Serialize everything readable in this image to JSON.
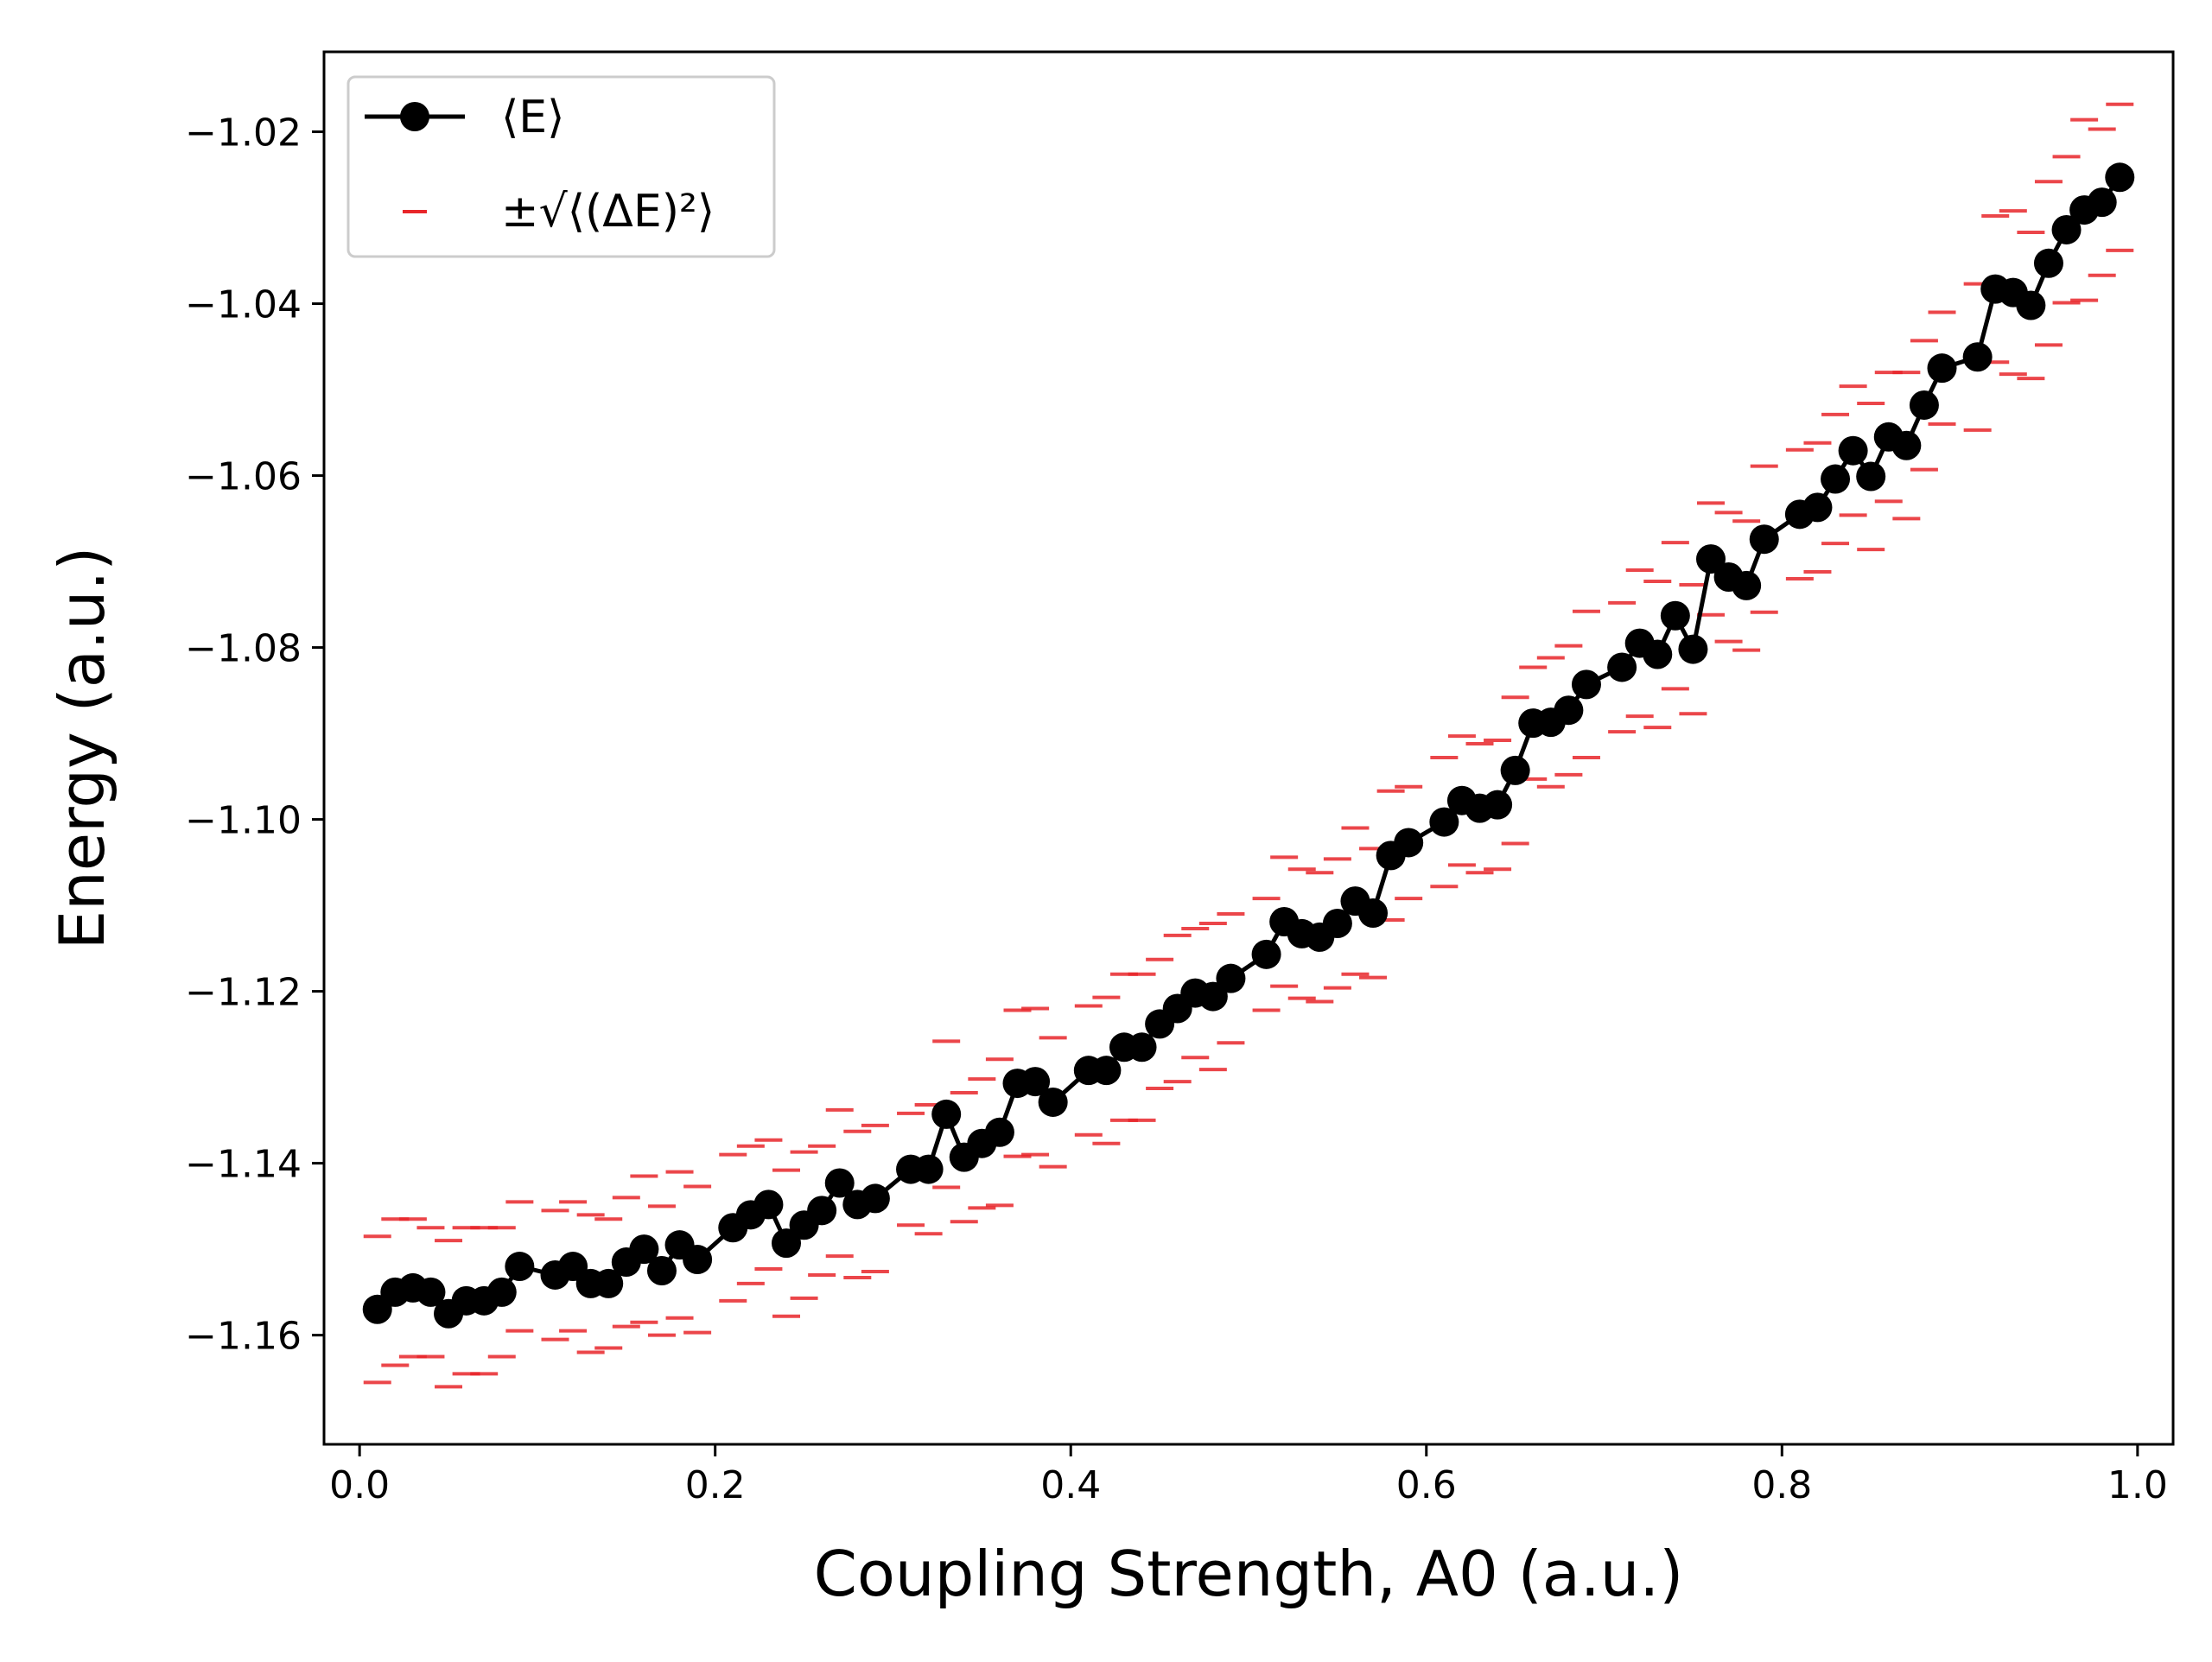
{
  "chart_data": {
    "type": "line",
    "title": "",
    "xlabel": "Coupling Strength, A0 (a.u.)",
    "ylabel": "Energy (a.u.)",
    "xlim": [
      -0.02,
      1.02
    ],
    "ylim": [
      -1.1727,
      -1.0107
    ],
    "xticks": [
      0.0,
      0.2,
      0.4,
      0.6,
      0.8,
      1.0
    ],
    "xtick_labels": [
      "0.0",
      "0.2",
      "0.4",
      "0.6",
      "0.8",
      "1.0"
    ],
    "yticks": [
      -1.16,
      -1.14,
      -1.12,
      -1.1,
      -1.08,
      -1.06,
      -1.04,
      -1.02
    ],
    "ytick_labels": [
      "−1.16",
      "−1.14",
      "−1.12",
      "−1.10",
      "−1.08",
      "−1.06",
      "−1.04",
      "−1.02"
    ],
    "grid": false,
    "legend_position": "top-left",
    "x": [
      0.01,
      0.02,
      0.03,
      0.04,
      0.05,
      0.06,
      0.07,
      0.08,
      0.09,
      0.11,
      0.12,
      0.13,
      0.14,
      0.15,
      0.16,
      0.17,
      0.18,
      0.19,
      0.21,
      0.22,
      0.23,
      0.24,
      0.25,
      0.26,
      0.27,
      0.28,
      0.29,
      0.31,
      0.32,
      0.33,
      0.34,
      0.35,
      0.36,
      0.37,
      0.38,
      0.39,
      0.41,
      0.42,
      0.43,
      0.44,
      0.45,
      0.46,
      0.47,
      0.48,
      0.49,
      0.51,
      0.52,
      0.53,
      0.54,
      0.55,
      0.56,
      0.57,
      0.58,
      0.59,
      0.61,
      0.62,
      0.63,
      0.64,
      0.65,
      0.66,
      0.67,
      0.68,
      0.69,
      0.71,
      0.72,
      0.73,
      0.74,
      0.75,
      0.76,
      0.77,
      0.78,
      0.79,
      0.81,
      0.82,
      0.83,
      0.84,
      0.85,
      0.86,
      0.87,
      0.88,
      0.89,
      0.91,
      0.92,
      0.93,
      0.94,
      0.95,
      0.96,
      0.97,
      0.98,
      0.99
    ],
    "series": [
      {
        "name": "⟨E⟩",
        "color": "#000000",
        "marker": "circle",
        "values": [
          -1.157,
          -1.155,
          -1.1545,
          -1.155,
          -1.1575,
          -1.156,
          -1.156,
          -1.155,
          -1.152,
          -1.153,
          -1.152,
          -1.154,
          -1.154,
          -1.1515,
          -1.15,
          -1.1525,
          -1.1495,
          -1.1512,
          -1.1475,
          -1.146,
          -1.1448,
          -1.1493,
          -1.1472,
          -1.1455,
          -1.1423,
          -1.1448,
          -1.1441,
          -1.1407,
          -1.1407,
          -1.1343,
          -1.1393,
          -1.1377,
          -1.1364,
          -1.1307,
          -1.1305,
          -1.1329,
          -1.1292,
          -1.1292,
          -1.1265,
          -1.1265,
          -1.1238,
          -1.122,
          -1.1202,
          -1.1206,
          -1.1185,
          -1.1157,
          -1.1119,
          -1.1133,
          -1.1137,
          -1.1121,
          -1.1095,
          -1.1109,
          -1.1042,
          -1.1027,
          -1.1003,
          -1.0978,
          -1.0987,
          -1.0983,
          -1.0943,
          -1.0888,
          -1.0887,
          -1.0873,
          -1.0843,
          -1.0823,
          -1.0795,
          -1.0808,
          -1.0763,
          -1.0802,
          -1.0697,
          -1.0718,
          -1.0728,
          -1.0674,
          -1.0645,
          -1.0637,
          -1.0604,
          -1.0571,
          -1.0601,
          -1.0555,
          -1.0565,
          -1.0518,
          -1.0475,
          -1.0462,
          -1.0383,
          -1.0387,
          -1.0402,
          -1.0353,
          -1.0314,
          -1.0291,
          -1.0282,
          -1.0253
        ]
      },
      {
        "name": "±√⟨(ΔE)²⟩",
        "color": "#e8262a",
        "marker": "hline",
        "deltas": [
          0.0085,
          0.0085,
          0.008,
          0.0075,
          0.0085,
          0.0085,
          0.0085,
          0.0075,
          0.0075,
          0.0075,
          0.0075,
          0.008,
          0.0075,
          0.0075,
          0.0085,
          0.0075,
          0.0085,
          0.0085,
          0.0085,
          0.008,
          0.0075,
          0.0085,
          0.0085,
          0.0075,
          0.0085,
          0.0085,
          0.0085,
          0.0065,
          0.0075,
          0.0085,
          0.0075,
          0.0075,
          0.0085,
          0.0085,
          0.0085,
          0.0075,
          0.0075,
          0.0085,
          0.0085,
          0.0085,
          0.0075,
          0.0085,
          0.0075,
          0.0085,
          0.0075,
          0.0065,
          0.0075,
          0.0075,
          0.0075,
          0.0075,
          0.0085,
          0.0075,
          0.0075,
          0.0065,
          0.0075,
          0.0075,
          0.0075,
          0.0075,
          0.0085,
          0.0065,
          0.0075,
          0.0075,
          0.0085,
          0.0075,
          0.0085,
          0.0085,
          0.0085,
          0.0075,
          0.0065,
          0.0075,
          0.0075,
          0.0085,
          0.0075,
          0.0075,
          0.0075,
          0.0075,
          0.0085,
          0.0075,
          0.0085,
          0.0075,
          0.0065,
          0.0085,
          0.0085,
          0.0095,
          0.0085,
          0.0095,
          0.0085,
          0.0105,
          0.0085,
          0.0085
        ]
      }
    ]
  }
}
